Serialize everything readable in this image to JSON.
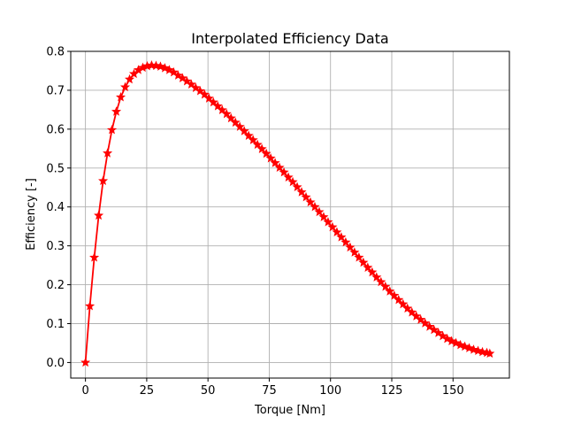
{
  "chart_data": {
    "type": "line",
    "title": "Interpolated Efficiency Data",
    "xlabel": "Torque [Nm]",
    "ylabel": "Efficiency [-]",
    "xlim": [
      -6,
      173
    ],
    "ylim": [
      -0.04,
      0.8
    ],
    "xticks": [
      0,
      25,
      50,
      75,
      100,
      125,
      150
    ],
    "yticks": [
      0.0,
      0.1,
      0.2,
      0.3,
      0.4,
      0.5,
      0.6,
      0.7,
      0.8
    ],
    "ytick_labels": [
      "0.0",
      "0.1",
      "0.2",
      "0.3",
      "0.4",
      "0.5",
      "0.6",
      "0.7",
      "0.8"
    ],
    "grid": true,
    "series": [
      {
        "color": "#ff0000",
        "marker": "star",
        "x": [
          0,
          1.8,
          3.6,
          5.4,
          7.2,
          9.0,
          10.8,
          12.6,
          14.4,
          16.2,
          18.0,
          19.8,
          21.6,
          23.4,
          25.2,
          27.0,
          28.8,
          30.6,
          32.4,
          34.2,
          36.0,
          37.8,
          39.6,
          41.4,
          43.2,
          45.0,
          46.8,
          48.6,
          50.4,
          52.2,
          54.0,
          55.8,
          57.6,
          59.4,
          61.2,
          63.0,
          64.8,
          66.6,
          68.4,
          70.2,
          72.0,
          73.8,
          75.6,
          77.4,
          79.2,
          81.0,
          82.8,
          84.6,
          86.4,
          88.2,
          90.0,
          91.8,
          93.6,
          95.4,
          97.2,
          99.0,
          100.8,
          102.6,
          104.4,
          106.2,
          108.0,
          109.8,
          111.6,
          113.4,
          115.2,
          117.0,
          118.8,
          120.6,
          122.4,
          124.2,
          126.0,
          127.8,
          129.6,
          131.4,
          133.2,
          135.0,
          136.8,
          138.6,
          140.4,
          142.2,
          144.0,
          145.8,
          147.6,
          149.4,
          151.2,
          153.0,
          154.8,
          156.6,
          158.4,
          160.2,
          162.0,
          163.8,
          165.0
        ],
        "y": [
          0.0,
          0.145,
          0.27,
          0.378,
          0.467,
          0.538,
          0.598,
          0.645,
          0.682,
          0.708,
          0.728,
          0.742,
          0.752,
          0.758,
          0.762,
          0.764,
          0.763,
          0.761,
          0.757,
          0.752,
          0.746,
          0.738,
          0.731,
          0.723,
          0.715,
          0.706,
          0.698,
          0.689,
          0.679,
          0.669,
          0.659,
          0.649,
          0.639,
          0.628,
          0.617,
          0.606,
          0.595,
          0.583,
          0.572,
          0.56,
          0.549,
          0.537,
          0.525,
          0.513,
          0.501,
          0.489,
          0.476,
          0.464,
          0.451,
          0.438,
          0.425,
          0.412,
          0.4,
          0.387,
          0.374,
          0.361,
          0.348,
          0.335,
          0.322,
          0.309,
          0.296,
          0.283,
          0.27,
          0.257,
          0.244,
          0.232,
          0.219,
          0.207,
          0.195,
          0.183,
          0.172,
          0.161,
          0.15,
          0.139,
          0.129,
          0.119,
          0.11,
          0.101,
          0.092,
          0.084,
          0.076,
          0.068,
          0.061,
          0.055,
          0.05,
          0.045,
          0.041,
          0.037,
          0.033,
          0.03,
          0.027,
          0.025,
          0.023
        ]
      }
    ]
  }
}
